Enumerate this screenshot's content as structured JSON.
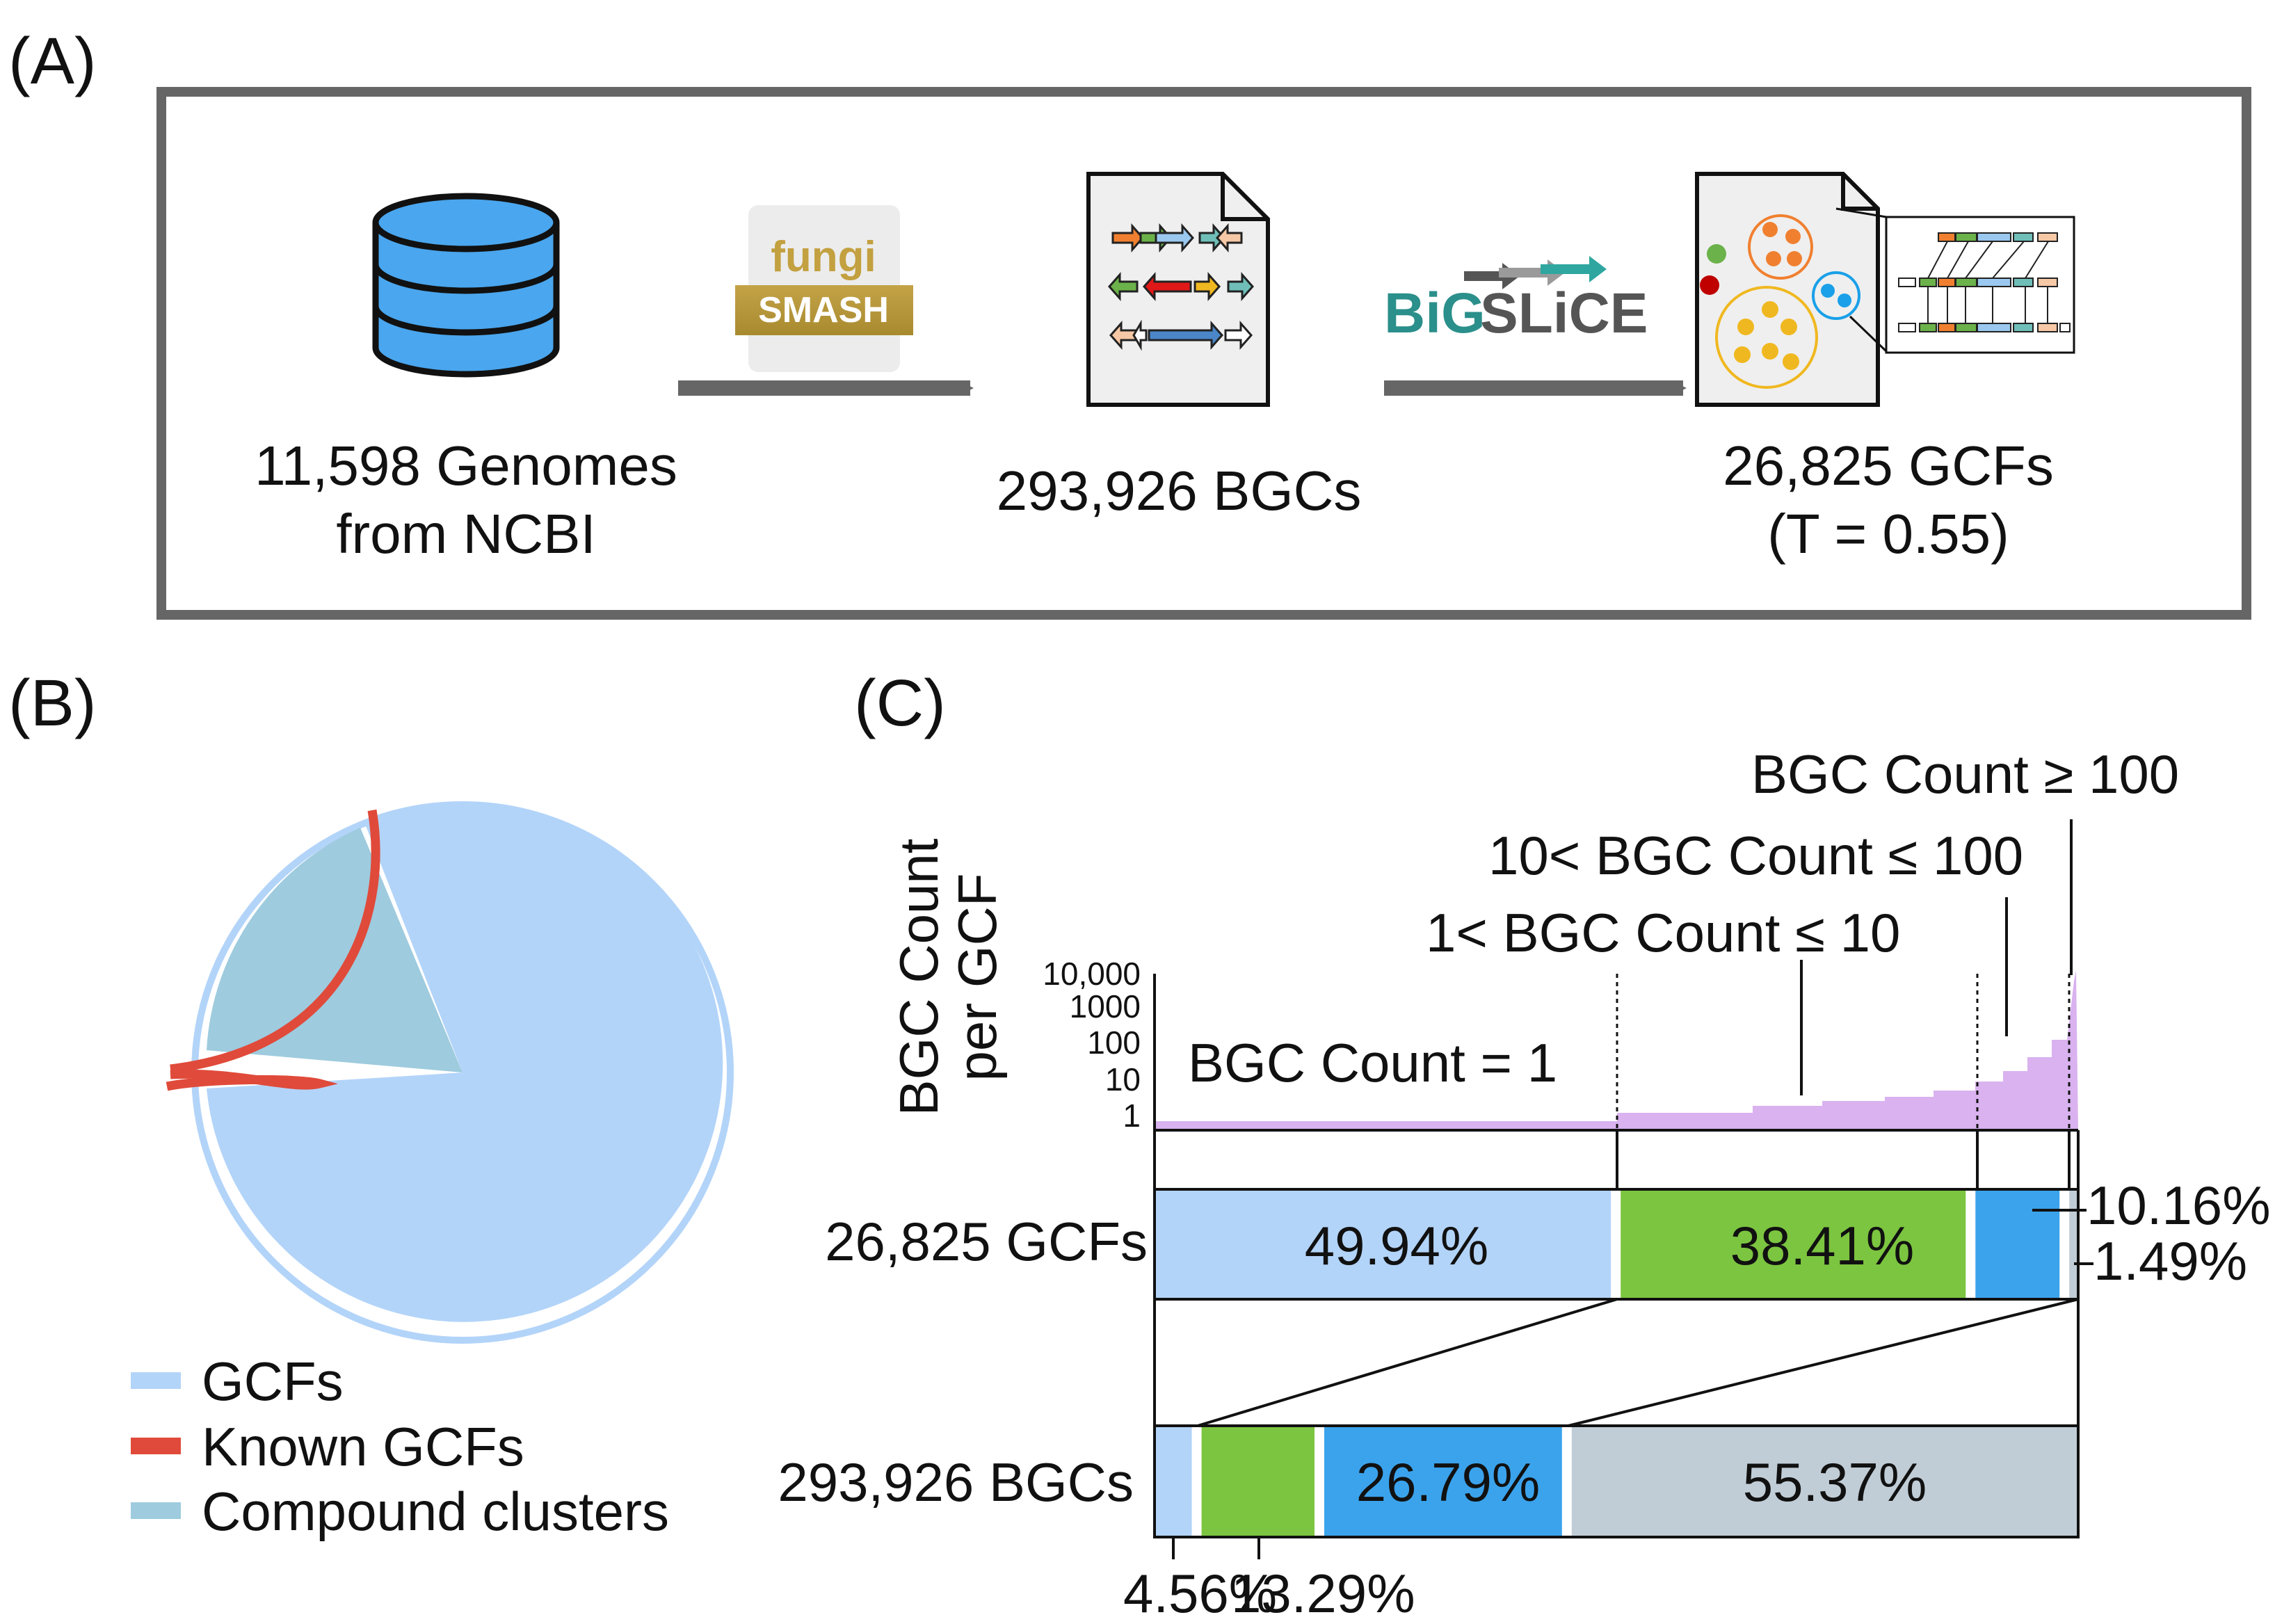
{
  "panels": {
    "a": {
      "label": "(A)",
      "genomes": {
        "line1": "11,598 Genomes",
        "line2": "from NCBI"
      },
      "fungismash": {
        "line1": "fungi",
        "line2": "SMASH"
      },
      "bgcs": "293,926 BGCs",
      "bigslice": {
        "part1": "BiG",
        "part2": "SLiCE"
      },
      "gcfs": {
        "line1": "26,825 GCFs",
        "line2": "(T = 0.55)"
      }
    },
    "b": {
      "label": "(B)",
      "legend": [
        "GCFs",
        "Known GCFs",
        "Compound clusters"
      ]
    },
    "c": {
      "label": "(C)",
      "ylabel": {
        "line1": "BGC Count",
        "line2": "per GCF"
      },
      "yticks": [
        "10,000",
        "1000",
        "100",
        "10",
        "1"
      ],
      "categories": {
        "eq1": "BGC Count = 1",
        "c1to10": "1< BGC Count ≤ 10",
        "c10to100": "10< BGC Count ≤ 100",
        "ge100": "BGC Count ≥ 100"
      },
      "gcf_row_label": "26,825 GCFs",
      "bgc_row_label": "293,926 BGCs",
      "gcf_pct": {
        "a": "49.94%",
        "b": "38.41%",
        "c": "10.16%",
        "d": "1.49%"
      },
      "bgc_pct": {
        "a": "4.56%",
        "b": "13.29%",
        "c": "26.79%",
        "d": "55.37%"
      }
    }
  },
  "chart_data": {
    "type": "stacked-bar",
    "title": "",
    "categories": [
      "BGC Count = 1",
      "1< BGC Count ≤ 10",
      "10< BGC Count ≤ 100",
      "BGC Count ≥ 100"
    ],
    "series": [
      {
        "name": "26,825 GCFs",
        "values": [
          49.94,
          38.41,
          10.16,
          1.49
        ]
      },
      {
        "name": "293,926 BGCs",
        "values": [
          4.56,
          13.29,
          26.79,
          55.37
        ]
      }
    ],
    "colors": [
      "#b3d4f9",
      "#7cc540",
      "#3ba3ec",
      "#c1cdd6"
    ],
    "distribution": {
      "type": "area",
      "ylabel": "BGC Count per GCF",
      "yscale": "log",
      "ylim": [
        1,
        10000
      ],
      "color": "#d9b2ef"
    },
    "pie": {
      "type": "pie",
      "labels": [
        "GCFs",
        "Known GCFs",
        "Compound clusters"
      ],
      "colors": [
        "#b3d4f9",
        "#e04a3a",
        "#9ecbde"
      ]
    }
  }
}
